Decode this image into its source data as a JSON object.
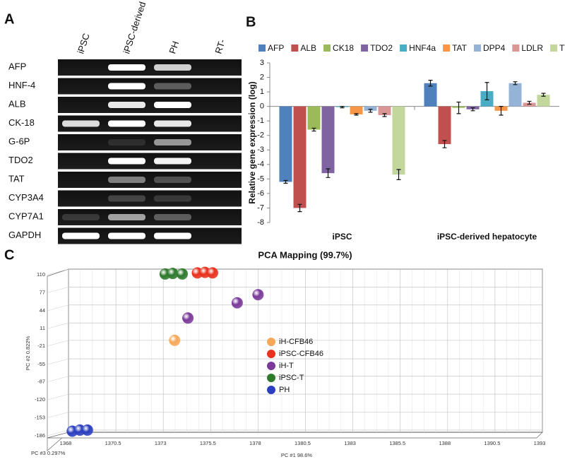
{
  "panels": [
    "A",
    "B",
    "C"
  ],
  "gel": {
    "columns": [
      "iPSC",
      "iPSC-derived hepatocyte",
      "PH",
      "RT-"
    ],
    "rows": [
      "AFP",
      "HNF-4",
      "ALB",
      "CK-18",
      "G-6P",
      "TDO2",
      "TAT",
      "CYP3A4",
      "CYP7A1",
      "GAPDH"
    ]
  },
  "chart_data": [
    {
      "type": "bar",
      "y_label": "Relative gene expression (log)",
      "categories": [
        "iPSC",
        "iPSC-derived hepatocyte"
      ],
      "ylim": [
        -8,
        3
      ],
      "yticks": [
        -8,
        -7,
        -6,
        -5,
        -4,
        -3,
        -2,
        -1,
        0,
        1,
        2,
        3
      ],
      "series": [
        {
          "name": "AFP",
          "color": "#4f81bd",
          "values": [
            -5.2,
            1.6
          ],
          "errors": [
            0.1,
            0.2
          ]
        },
        {
          "name": "ALB",
          "color": "#c0504d",
          "values": [
            -7.0,
            -2.6
          ],
          "errors": [
            0.25,
            0.25
          ]
        },
        {
          "name": "CK18",
          "color": "#9bbb59",
          "values": [
            -1.6,
            -0.1
          ],
          "errors": [
            0.1,
            0.4
          ]
        },
        {
          "name": "TDO2",
          "color": "#8064a2",
          "values": [
            -4.6,
            -0.2
          ],
          "errors": [
            0.3,
            0.1
          ]
        },
        {
          "name": "HNF4a",
          "color": "#4bacc6",
          "values": [
            -0.05,
            1.05
          ],
          "errors": [
            0.05,
            0.6
          ]
        },
        {
          "name": "TAT",
          "color": "#f79646",
          "values": [
            -0.55,
            -0.3
          ],
          "errors": [
            0.05,
            0.3
          ]
        },
        {
          "name": "DPP4",
          "color": "#95b3d7",
          "values": [
            -0.3,
            1.6
          ],
          "errors": [
            0.1,
            0.1
          ]
        },
        {
          "name": "LDLR",
          "color": "#d99694",
          "values": [
            -0.6,
            0.25
          ],
          "errors": [
            0.1,
            0.1
          ]
        },
        {
          "name": "TTR",
          "color": "#c3d69b",
          "values": [
            -4.7,
            0.8
          ],
          "errors": [
            0.35,
            0.1
          ]
        }
      ]
    },
    {
      "type": "scatter",
      "title": "PCA Mapping (99.7%)",
      "x_label": "PC #1 98.6%",
      "y_label": "PC #2 0.822%",
      "z_label": "PC #3 0.297%",
      "xlim": [
        1368,
        1393
      ],
      "xticks": [
        1368,
        1370.5,
        1373,
        1375.5,
        1378,
        1380.5,
        1383,
        1385.5,
        1388,
        1390.5,
        1393
      ],
      "ylim": [
        -190,
        110
      ],
      "yticks": [
        110,
        77,
        44,
        11,
        -21,
        -55,
        -87,
        -120,
        -153,
        -186
      ],
      "series": [
        {
          "name": "iH-CFB46",
          "color": "#f5a85a",
          "x": [
            1373.6
          ],
          "y": [
            -21
          ]
        },
        {
          "name": "iPSC-CFB46",
          "color": "#e8321e",
          "x": [
            1374.8,
            1375.2,
            1375.6
          ],
          "y": [
            103,
            104,
            103
          ]
        },
        {
          "name": "iH-T",
          "color": "#7a3a9a",
          "x": [
            1374.3,
            1376.9,
            1378.0
          ],
          "y": [
            20,
            48,
            63
          ]
        },
        {
          "name": "iPSC-T",
          "color": "#2d7a2d",
          "x": [
            1373.1,
            1373.5,
            1374.0
          ],
          "y": [
            101,
            102,
            101
          ]
        },
        {
          "name": "PH",
          "color": "#2b3fbf",
          "x": [
            1368.2,
            1368.6,
            1369.0
          ],
          "y": [
            -188,
            -186,
            -186
          ]
        }
      ]
    }
  ]
}
